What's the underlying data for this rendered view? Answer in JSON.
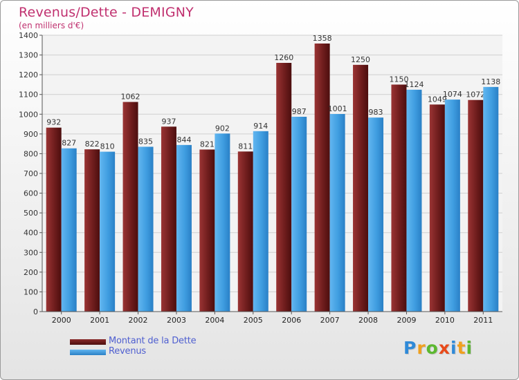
{
  "header": {
    "title": "Revenus/Dette - DEMIGNY",
    "subtitle": "(en milliers d'€)"
  },
  "logo": {
    "letters": [
      "P",
      "r",
      "o",
      "x",
      "i",
      "t",
      "i"
    ],
    "colors": [
      "#2f8ad8",
      "#f0a01e",
      "#5cb830",
      "#e84a1a",
      "#2f8ad8",
      "#f0a01e",
      "#5cb830"
    ]
  },
  "chart_data": {
    "type": "bar",
    "title": "Revenus/Dette - DEMIGNY",
    "subtitle": "(en milliers d'€)",
    "categories": [
      "2000",
      "2001",
      "2002",
      "2003",
      "2004",
      "2005",
      "2006",
      "2007",
      "2008",
      "2009",
      "2010",
      "2011"
    ],
    "series": [
      {
        "name": "Montant de la Dette",
        "color": "#6e1c1c",
        "values": [
          932,
          822,
          1062,
          937,
          821,
          811,
          1260,
          1358,
          1250,
          1150,
          1049,
          1072
        ]
      },
      {
        "name": "Revenus",
        "color": "#3f9de0",
        "values": [
          827,
          810,
          835,
          844,
          902,
          914,
          987,
          1001,
          983,
          1124,
          1074,
          1138
        ]
      }
    ],
    "ylim": [
      0,
      1400
    ],
    "ytick_step": 100,
    "yticks": [
      "0",
      "100",
      "200",
      "300",
      "400",
      "500",
      "600",
      "700",
      "800",
      "900",
      "1000",
      "1100",
      "1200",
      "1300",
      "1400"
    ],
    "grid": true,
    "legend_position": "bottom-left"
  }
}
